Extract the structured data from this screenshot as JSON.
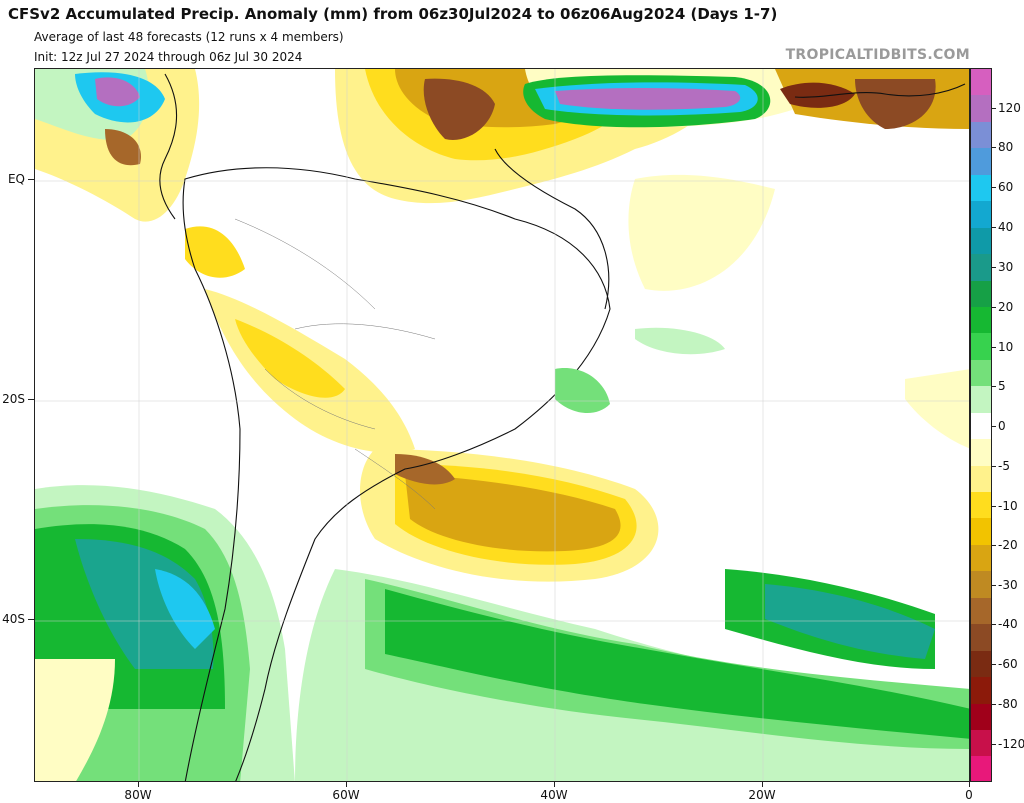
{
  "header": {
    "title": "CFSv2 Accumulated Precip. Anomaly (mm) from 06z30Jul2024 to 06z06Aug2024 (Days 1-7)",
    "line1": "Average of last 48 forecasts (12 runs x 4 members)",
    "line2": "Init: 12z Jul 27 2024 through 06z Jul 30 2024"
  },
  "watermark": "TROPICALTIDBITS.COM",
  "axes": {
    "y_labels": [
      "EQ",
      "20S",
      "40S"
    ],
    "x_labels": [
      "80W",
      "60W",
      "40W",
      "20W",
      "0"
    ]
  },
  "colorbar": {
    "labels": [
      "120",
      "80",
      "60",
      "40",
      "30",
      "20",
      "10",
      "5",
      "0",
      "-5",
      "-10",
      "-20",
      "-30",
      "-40",
      "-60",
      "-80",
      "-120"
    ],
    "colors": [
      "#d65fbf",
      "#b46fc0",
      "#7b8fd6",
      "#4f9bdc",
      "#1ec8f0",
      "#13a8d0",
      "#0f9aa8",
      "#1a9a8a",
      "#16a046",
      "#16b832",
      "#37d24e",
      "#74e07a",
      "#c3f5c1",
      "#ffffff",
      "#fffdc4",
      "#fff28c",
      "#ffdd1e",
      "#f2c300",
      "#d9a512",
      "#bf8a22",
      "#a6672a",
      "#8c4a24",
      "#7a2b12",
      "#8c1a0a",
      "#a0001a",
      "#c8104a",
      "#e8187a"
    ]
  },
  "map_colors": {
    "ocean_white": "#ffffff",
    "pale_green": "#c3f5c1",
    "light_green": "#74e07a",
    "green": "#16b832",
    "dark_green": "#13a042",
    "teal": "#1aa58e",
    "cyan": "#1ec8f0",
    "pale_yellow": "#fffdc4",
    "yellow": "#fff28c",
    "gold": "#ffdd1e",
    "orange": "#d9a512",
    "brown": "#a6672a",
    "dark_brown": "#8c4a24",
    "purple": "#b46fc0",
    "magenta": "#d65fbf"
  }
}
